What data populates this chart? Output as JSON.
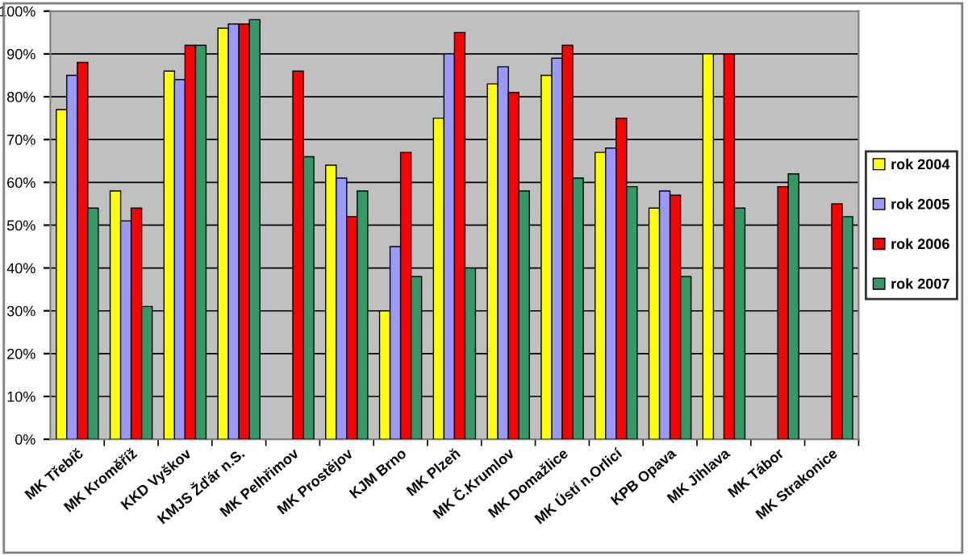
{
  "chart_data": {
    "type": "bar",
    "categories": [
      "MK Třebíč",
      "MK Kroměříž",
      "KKD Vyškov",
      "KMJS Žďár n.S.",
      "MK Pelhřimov",
      "MK Prostějov",
      "KJM Brno",
      "MK Plzeň",
      "MK Č.Krumlov",
      "MK Domažlice",
      "MK Ústí n.Orlicí",
      "KPB Opava",
      "MK Jihlava",
      "MK Tábor",
      "MK Strakonice"
    ],
    "series": [
      {
        "name": "rok 2004",
        "color": "#ffff00",
        "values": [
          77,
          58,
          86,
          96,
          null,
          64,
          30,
          75,
          83,
          85,
          67,
          54,
          90,
          null,
          null
        ]
      },
      {
        "name": "rok 2005",
        "color": "#9999ff",
        "values": [
          85,
          51,
          84,
          97,
          null,
          61,
          45,
          90,
          87,
          89,
          68,
          58,
          null,
          null,
          null
        ]
      },
      {
        "name": "rok 2006",
        "color": "#ff0000",
        "values": [
          88,
          54,
          92,
          97,
          86,
          52,
          67,
          95,
          81,
          92,
          75,
          57,
          90,
          59,
          55
        ]
      },
      {
        "name": "rok 2007",
        "color": "#339966",
        "values": [
          54,
          31,
          92,
          98,
          66,
          58,
          38,
          40,
          58,
          61,
          59,
          38,
          54,
          62,
          52
        ]
      }
    ],
    "ylim": [
      0,
      100
    ],
    "yticks": [
      {
        "value": 0,
        "label": "0%"
      },
      {
        "value": 10,
        "label": "10%"
      },
      {
        "value": 20,
        "label": "20%"
      },
      {
        "value": 30,
        "label": "30%"
      },
      {
        "value": 40,
        "label": "40%"
      },
      {
        "value": 50,
        "label": "50%"
      },
      {
        "value": 60,
        "label": "60%"
      },
      {
        "value": 70,
        "label": "70%"
      },
      {
        "value": 80,
        "label": "80%"
      },
      {
        "value": 90,
        "label": "90%"
      },
      {
        "value": 100,
        "label": "100%"
      }
    ],
    "grid": "y",
    "legend": "right"
  }
}
